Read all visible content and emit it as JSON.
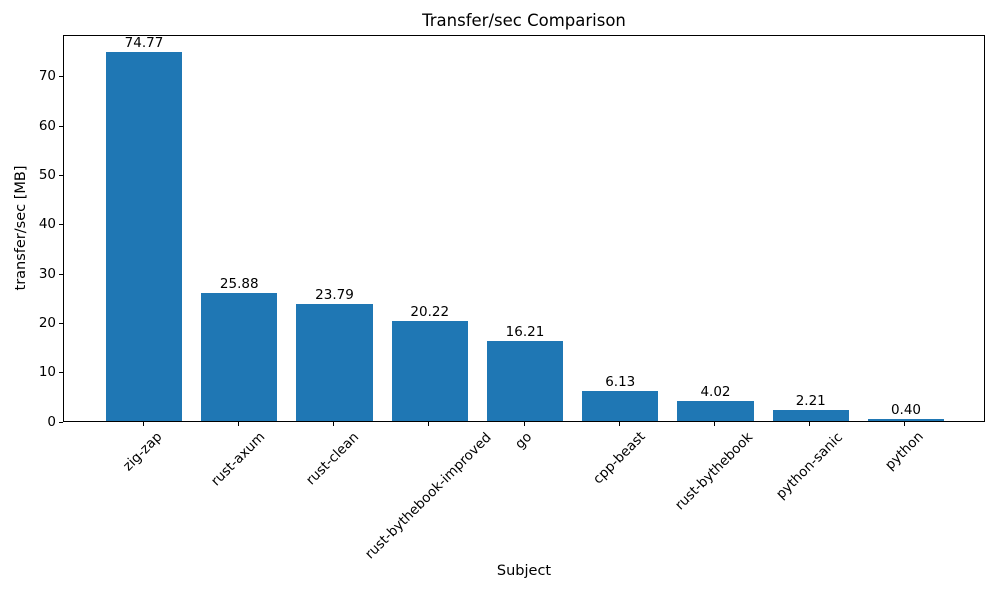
{
  "chart_data": {
    "type": "bar",
    "title": "Transfer/sec Comparison",
    "xlabel": "Subject",
    "ylabel": "transfer/sec [MB]",
    "categories": [
      "zig-zap",
      "rust-axum",
      "rust-clean",
      "rust-bythebook-improved",
      "go",
      "cpp-beast",
      "rust-bythebook",
      "python-sanic",
      "python"
    ],
    "values": [
      74.77,
      25.88,
      23.79,
      20.22,
      16.21,
      6.13,
      4.02,
      2.21,
      0.4
    ],
    "value_labels": [
      "74.77",
      "25.88",
      "23.79",
      "20.22",
      "16.21",
      "6.13",
      "4.02",
      "2.21",
      "0.40"
    ],
    "bar_color": "#1f77b4",
    "axis_color": "#000000",
    "background_color": "#ffffff",
    "yticks": [
      0,
      10,
      20,
      30,
      40,
      50,
      60,
      70
    ],
    "ylim": [
      0,
      78.5
    ],
    "xlim": [
      -0.84,
      8.84
    ],
    "bar_width": 0.8,
    "xtick_rotation_deg": 45,
    "grid": false,
    "legend_position": "none"
  }
}
